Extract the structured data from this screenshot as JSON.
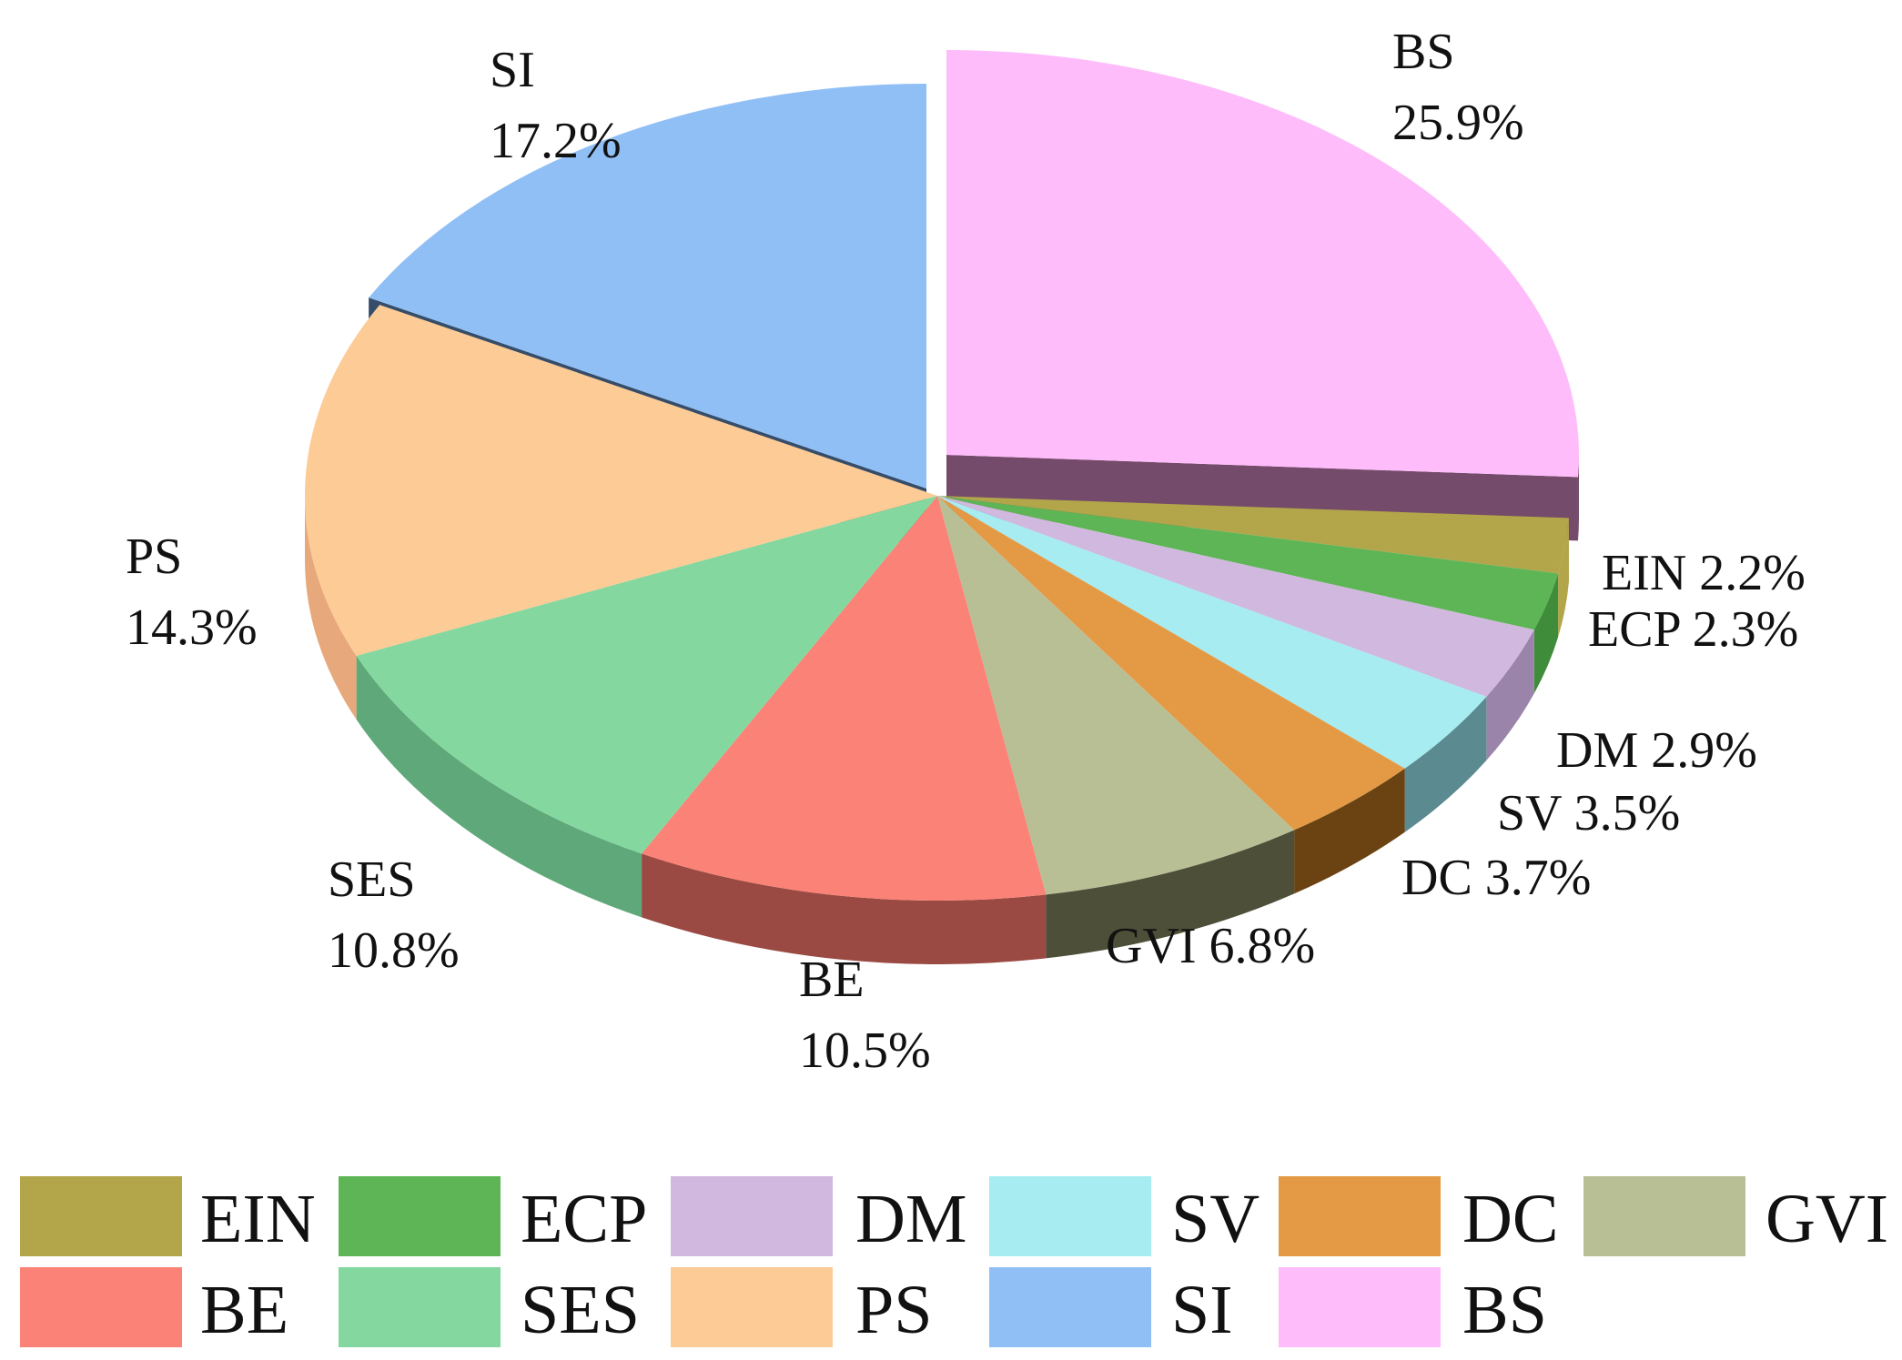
{
  "chart_data": {
    "type": "pie",
    "style": "3d-exploded",
    "slices": [
      {
        "key": "BS",
        "label": "BS",
        "value": 25.9,
        "value_text": "25.9%",
        "color": "#ffbcfb",
        "side": "#744b6a"
      },
      {
        "key": "EIN",
        "label": "EIN",
        "value": 2.2,
        "value_text": "2.2%",
        "color": "#b2a54a",
        "side": "#b2a54a"
      },
      {
        "key": "ECP",
        "label": "ECP",
        "value": 2.3,
        "value_text": "2.3%",
        "color": "#5db555",
        "side": "#3f8c3a"
      },
      {
        "key": "DM",
        "label": "DM",
        "value": 2.9,
        "value_text": "2.9%",
        "color": "#d0b8de",
        "side": "#9a84a9"
      },
      {
        "key": "SV",
        "label": "SV",
        "value": 3.5,
        "value_text": "3.5%",
        "color": "#a6ecf0",
        "side": "#5b8a90"
      },
      {
        "key": "DC",
        "label": "DC",
        "value": 3.7,
        "value_text": "3.7%",
        "color": "#e49a45",
        "side": "#6b4312"
      },
      {
        "key": "GVI",
        "label": "GVI",
        "value": 6.8,
        "value_text": "6.8%",
        "color": "#b9bf95",
        "side": "#4d4f39"
      },
      {
        "key": "BE",
        "label": "BE",
        "value": 10.5,
        "value_text": "10.5%",
        "color": "#fb8276",
        "side": "#9a4a42"
      },
      {
        "key": "SES",
        "label": "SES",
        "value": 10.8,
        "value_text": "10.8%",
        "color": "#84d89f",
        "side": "#5fa879"
      },
      {
        "key": "PS",
        "label": "PS",
        "value": 14.3,
        "value_text": "14.3%",
        "color": "#fdcb96",
        "side": "#e7a97c"
      },
      {
        "key": "SI",
        "label": "SI",
        "value": 17.2,
        "value_text": "17.2%",
        "color": "#90bff6",
        "side": "#364d6a"
      }
    ],
    "legend": {
      "placement": "bottom",
      "entries": [
        "EIN",
        "ECP",
        "DM",
        "SV",
        "DC",
        "GVI",
        "BE",
        "SES",
        "PS",
        "SI",
        "BS"
      ]
    }
  }
}
